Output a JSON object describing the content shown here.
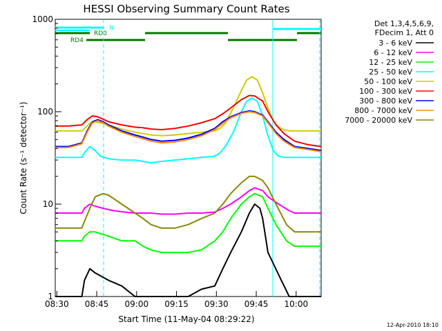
{
  "chart_data": {
    "type": "line",
    "title": "HESSI Observing Summary Count Rates",
    "xlabel": "Start Time (11-May-04 08:29:22)",
    "ylabel": "Count Rate (s⁻¹ detector⁻¹)",
    "yscale": "log",
    "ylim": [
      1,
      1000
    ],
    "xlim": [
      0,
      100
    ],
    "x_unit": "minutes after 08:29:22",
    "x_ticks": [
      {
        "label": "08:30",
        "x": 0.6
      },
      {
        "label": "08:45",
        "x": 15.6
      },
      {
        "label": "09:00",
        "x": 30.6
      },
      {
        "label": "09:15",
        "x": 45.6
      },
      {
        "label": "09:30",
        "x": 60.6
      },
      {
        "label": "09:45",
        "x": 75.6
      },
      {
        "label": "10:00",
        "x": 90.6
      }
    ],
    "y_ticks": [
      {
        "label": "1",
        "y": 1
      },
      {
        "label": "10",
        "y": 10
      },
      {
        "label": "100",
        "y": 100
      },
      {
        "label": "1000",
        "y": 1000
      }
    ],
    "legend_header": [
      "Det 1,3,4,5,6,9,",
      "FDecim 1, Att 0"
    ],
    "legend_position": "right",
    "series": [
      {
        "name": "3 - 6 keV",
        "color": "#000000",
        "x": [
          0,
          10,
          11,
          13,
          15,
          20,
          25,
          30,
          33,
          36,
          40,
          45,
          50,
          55,
          60,
          63,
          66,
          70,
          73,
          75,
          77,
          78,
          80,
          85,
          88,
          92,
          100
        ],
        "y": [
          1,
          1,
          1.5,
          2,
          1.8,
          1.5,
          1.3,
          1,
          1,
          1,
          1,
          1,
          1,
          1.2,
          1.3,
          2,
          3,
          5,
          8,
          10,
          9,
          7,
          3,
          1.5,
          1,
          1,
          1
        ]
      },
      {
        "name": "6 - 12 keV",
        "color": "#ff00ff",
        "x": [
          0,
          10,
          11,
          13,
          15,
          18,
          22,
          26,
          30,
          33,
          36,
          40,
          45,
          50,
          55,
          60,
          63,
          66,
          70,
          73,
          75,
          78,
          80,
          84,
          88,
          90,
          100
        ],
        "y": [
          8,
          8,
          9,
          10,
          9.5,
          9,
          8.5,
          8.2,
          8,
          8,
          8,
          7.8,
          7.8,
          8,
          8,
          8.2,
          9,
          10,
          12,
          14,
          15,
          14,
          12,
          10,
          8.5,
          8,
          8
        ]
      },
      {
        "name": "12 - 25 keV",
        "color": "#00ff00",
        "x": [
          0,
          10,
          11,
          13,
          15,
          20,
          25,
          30,
          33,
          36,
          40,
          45,
          50,
          55,
          60,
          63,
          66,
          70,
          73,
          75,
          78,
          80,
          83,
          87,
          90,
          100
        ],
        "y": [
          4,
          4,
          4.5,
          5,
          5,
          4.5,
          4,
          4,
          3.5,
          3.2,
          3,
          3,
          3,
          3.2,
          4,
          5,
          7,
          10,
          12,
          13,
          12,
          9,
          6,
          4,
          3.5,
          3.5
        ]
      },
      {
        "name": "25 - 50 keV",
        "color": "#00ffff",
        "x": [
          0,
          10,
          11,
          13,
          15,
          17,
          20,
          25,
          30,
          33,
          36,
          40,
          45,
          50,
          55,
          60,
          62,
          64,
          67,
          70,
          72,
          74,
          76,
          78,
          80,
          82,
          84,
          86,
          88,
          90,
          100
        ],
        "y": [
          32,
          32,
          36,
          42,
          38,
          33,
          31,
          30,
          30,
          29,
          28,
          29,
          30,
          31,
          32,
          33,
          36,
          42,
          60,
          100,
          130,
          140,
          130,
          90,
          55,
          38,
          33,
          32,
          32,
          32,
          32
        ]
      },
      {
        "name": "50 - 100 keV",
        "color": "#cccc00",
        "x": [
          0,
          10,
          11,
          13,
          15,
          20,
          25,
          30,
          33,
          36,
          40,
          45,
          50,
          55,
          60,
          62,
          64,
          67,
          70,
          72,
          74,
          76,
          78,
          80,
          82,
          84,
          86,
          88,
          90,
          100
        ],
        "y": [
          62,
          62,
          66,
          75,
          78,
          72,
          65,
          60,
          58,
          56,
          55,
          56,
          58,
          60,
          62,
          66,
          75,
          110,
          170,
          220,
          240,
          220,
          160,
          110,
          80,
          68,
          64,
          62,
          62,
          62
        ]
      },
      {
        "name": "100 - 300 keV",
        "color": "#ff0000",
        "x": [
          0,
          5,
          10,
          12,
          14,
          16,
          18,
          20,
          25,
          30,
          33,
          36,
          40,
          45,
          50,
          55,
          60,
          63,
          66,
          70,
          73,
          75,
          78,
          80,
          83,
          86,
          90,
          95,
          100
        ],
        "y": [
          70,
          70,
          72,
          82,
          90,
          88,
          83,
          78,
          72,
          68,
          67,
          65,
          64,
          66,
          70,
          76,
          84,
          95,
          110,
          135,
          150,
          148,
          130,
          100,
          72,
          58,
          48,
          44,
          42
        ]
      },
      {
        "name": "300 - 800 keV",
        "color": "#0000ff",
        "x": [
          0,
          5,
          10,
          12,
          14,
          16,
          18,
          20,
          25,
          30,
          33,
          36,
          40,
          45,
          50,
          55,
          60,
          63,
          66,
          70,
          73,
          75,
          78,
          80,
          83,
          86,
          90,
          95,
          100
        ],
        "y": [
          42,
          42,
          46,
          62,
          78,
          82,
          78,
          72,
          62,
          56,
          53,
          50,
          48,
          49,
          52,
          57,
          66,
          78,
          88,
          98,
          102,
          100,
          92,
          78,
          60,
          50,
          42,
          40,
          38
        ]
      },
      {
        "name": "800 - 7000 keV",
        "color": "#ff8800",
        "x": [
          0,
          5,
          10,
          12,
          14,
          16,
          18,
          20,
          25,
          30,
          33,
          36,
          40,
          45,
          50,
          55,
          60,
          63,
          66,
          70,
          73,
          75,
          78,
          80,
          83,
          86,
          90,
          95,
          100
        ],
        "y": [
          41,
          41,
          45,
          60,
          76,
          80,
          76,
          70,
          60,
          54,
          51,
          48,
          46,
          47,
          50,
          55,
          64,
          75,
          86,
          96,
          100,
          98,
          90,
          76,
          58,
          48,
          41,
          39,
          37
        ]
      },
      {
        "name": "7000 - 20000 keV",
        "color": "#888800",
        "x": [
          0,
          10,
          11,
          13,
          15,
          18,
          20,
          25,
          30,
          33,
          36,
          40,
          45,
          50,
          55,
          60,
          63,
          66,
          70,
          73,
          75,
          78,
          80,
          83,
          87,
          90,
          100
        ],
        "y": [
          5.5,
          5.5,
          6.5,
          9,
          12,
          13,
          12.5,
          10,
          8,
          7,
          6,
          5.5,
          5.5,
          6,
          7,
          8,
          10,
          13,
          17,
          20,
          20,
          18,
          15,
          10,
          6,
          5,
          5
        ]
      }
    ],
    "flags": [
      {
        "label": "N",
        "color": "#00ffff"
      },
      {
        "label": "RD0",
        "color": "#00ffff"
      },
      {
        "label": "RD4",
        "color": "#007700"
      }
    ],
    "footer": "12-Apr-2010 18:10"
  }
}
